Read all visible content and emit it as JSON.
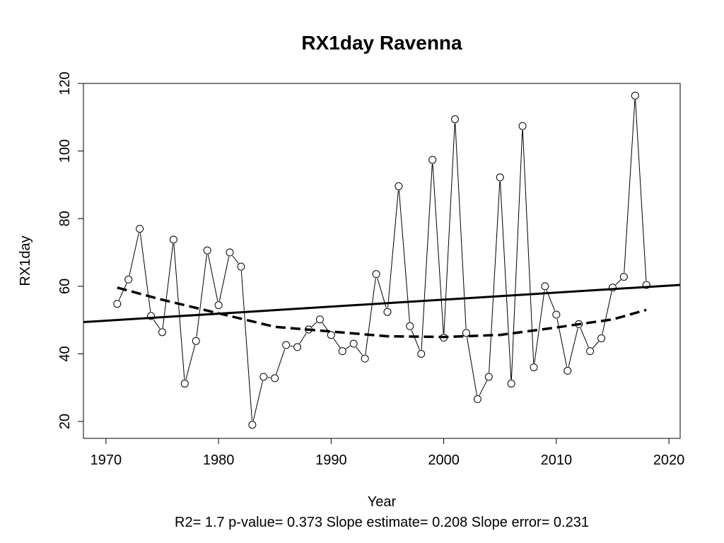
{
  "chart_data": {
    "type": "line",
    "title": "RX1day   Ravenna",
    "xlabel": "Year",
    "ylabel": "RX1day",
    "footer": "R2= 1.7  p-value= 0.373  Slope estimate= 0.208  Slope error= 0.231",
    "xlim": [
      1968,
      2021
    ],
    "ylim": [
      15,
      120
    ],
    "xticks": [
      1970,
      1980,
      1990,
      2000,
      2010,
      2020
    ],
    "yticks": [
      20,
      40,
      60,
      80,
      100,
      120
    ],
    "grid": false,
    "series": [
      {
        "style": "points-and-lines",
        "x": [
          1971,
          1972,
          1973,
          1974,
          1975,
          1976,
          1977,
          1978,
          1979,
          1980,
          1981,
          1982,
          1983,
          1984,
          1985,
          1986,
          1987,
          1988,
          1989,
          1990,
          1991,
          1992,
          1993,
          1994,
          1995,
          1996,
          1997,
          1998,
          1999,
          2000,
          2001,
          2002,
          2003,
          2004,
          2005,
          2006,
          2007,
          2008,
          2009,
          2010,
          2011,
          2012,
          2013,
          2014,
          2015,
          2016,
          2017,
          2018
        ],
        "y": [
          54.8,
          62.0,
          77.0,
          51.2,
          46.4,
          73.8,
          31.2,
          43.8,
          70.6,
          54.4,
          70.0,
          65.8,
          19.0,
          33.2,
          32.8,
          42.6,
          42.0,
          47.2,
          50.2,
          45.6,
          40.8,
          43.0,
          38.6,
          63.6,
          52.4,
          89.6,
          48.2,
          40.0,
          97.4,
          44.8,
          109.4,
          46.2,
          26.6,
          33.2,
          92.2,
          31.2,
          107.4,
          36.0,
          60.0,
          51.6,
          35.0,
          48.8,
          40.8,
          44.6,
          59.6,
          62.8,
          116.4,
          60.4
        ]
      },
      {
        "style": "solid-trend",
        "x": [
          1968,
          2021
        ],
        "y": [
          49.4,
          60.4
        ]
      },
      {
        "style": "dashed-smooth",
        "x": [
          1971,
          1975,
          1980,
          1985,
          1990,
          1995,
          2000,
          2005,
          2010,
          2015,
          2018
        ],
        "y": [
          59.6,
          56.0,
          52.0,
          48.0,
          46.6,
          45.2,
          45.0,
          45.6,
          47.8,
          50.2,
          53.0
        ]
      }
    ]
  }
}
